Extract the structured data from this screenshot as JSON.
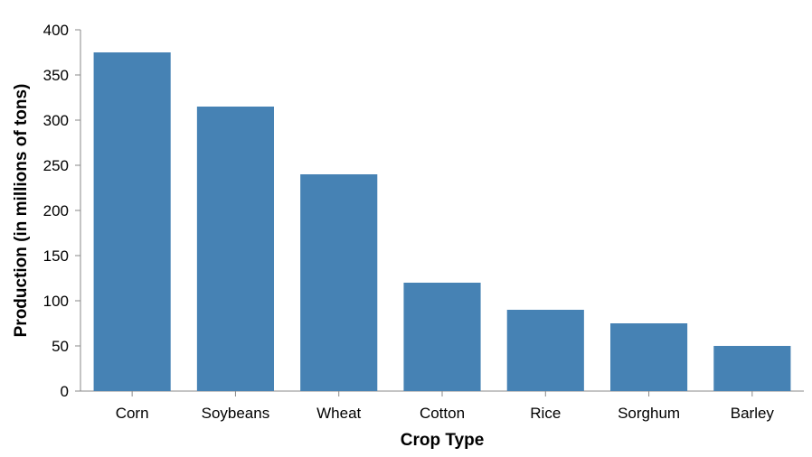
{
  "chart_data": {
    "type": "bar",
    "title": "",
    "xlabel": "Crop Type",
    "ylabel": "Production (in millions of tons)",
    "categories": [
      "Corn",
      "Soybeans",
      "Wheat",
      "Cotton",
      "Rice",
      "Sorghum",
      "Barley"
    ],
    "values": [
      375,
      315,
      240,
      120,
      90,
      75,
      50
    ],
    "ylim": [
      0,
      400
    ],
    "yticks": [
      0,
      50,
      100,
      150,
      200,
      250,
      300,
      350,
      400
    ],
    "grid": false,
    "legend": "none",
    "bar_color": "#4682b4",
    "axis_color": "#888888"
  }
}
